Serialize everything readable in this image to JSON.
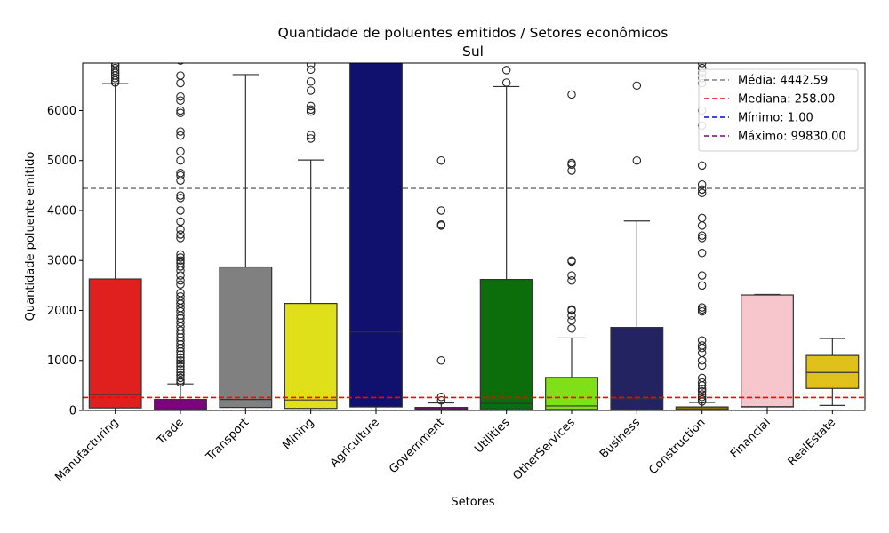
{
  "chart_data": {
    "type": "box",
    "title": "Quantidade de poluentes emitidos / Setores econômicos",
    "subtitle": "Sul",
    "xlabel": "Setores",
    "ylabel": "Quantidade poluente emitido",
    "ylim": [
      0,
      6950
    ],
    "yticks": [
      0,
      1000,
      2000,
      3000,
      4000,
      5000,
      6000
    ],
    "grid": false,
    "legend_position": "top-right",
    "categories": [
      "Manufacturing",
      "Trade",
      "Transport",
      "Mining",
      "Agriculture",
      "Government",
      "Utilities",
      "OtherServices",
      "Business",
      "Construction",
      "Financial",
      "RealEstate"
    ],
    "boxes": [
      {
        "category": "Manufacturing",
        "color": "#e01f1f",
        "whisker_low": 0,
        "q1": 50,
        "median": 320,
        "q3": 2630,
        "whisker_high": 6540,
        "outliers": [
          6560,
          6600,
          6650,
          6700,
          6750,
          6800,
          6850,
          6900,
          6950
        ]
      },
      {
        "category": "Trade",
        "color": "#800080",
        "whisker_low": 0,
        "q1": 10,
        "median": 60,
        "q3": 220,
        "whisker_high": 530,
        "outliers": [
          560,
          600,
          650,
          700,
          760,
          820,
          880,
          940,
          1000,
          1060,
          1120,
          1180,
          1250,
          1320,
          1390,
          1460,
          1530,
          1600,
          1680,
          1760,
          1840,
          1900,
          1980,
          2050,
          2130,
          2200,
          2280,
          2350,
          2520,
          2600,
          2700,
          2800,
          2880,
          2950,
          3000,
          3060,
          3120,
          3450,
          3520,
          3620,
          3780,
          4000,
          4250,
          4300,
          4600,
          4700,
          4750,
          5000,
          5180,
          5500,
          5580,
          5950,
          6000,
          6200,
          6280,
          6550,
          6700,
          7000
        ]
      },
      {
        "category": "Transport",
        "color": "#808080",
        "whisker_low": 0,
        "q1": 60,
        "median": 220,
        "q3": 2870,
        "whisker_high": 6720,
        "outliers": []
      },
      {
        "category": "Mining",
        "color": "#e0e01a",
        "whisker_low": 0,
        "q1": 40,
        "median": 210,
        "q3": 2140,
        "whisker_high": 5010,
        "outliers": [
          5440,
          5510,
          5980,
          6020,
          6090,
          6400,
          6580,
          6820,
          6920
        ]
      },
      {
        "category": "Agriculture",
        "color": "#10106e",
        "whisker_low": 0,
        "q1": 70,
        "median": 1570,
        "q3": 6950,
        "whisker_high": 6950,
        "outliers": []
      },
      {
        "category": "Government",
        "color": "#800080",
        "whisker_low": 0,
        "q1": 5,
        "median": 30,
        "q3": 60,
        "whisker_high": 150,
        "outliers": [
          200,
          270,
          1000,
          3700,
          3720,
          4000,
          5000
        ]
      },
      {
        "category": "Utilities",
        "color": "#0b6e0b",
        "whisker_low": 0,
        "q1": 30,
        "median": 140,
        "q3": 2620,
        "whisker_high": 6480,
        "outliers": [
          6560,
          6810
        ]
      },
      {
        "category": "OtherServices",
        "color": "#7fe01a",
        "whisker_low": 0,
        "q1": 20,
        "median": 90,
        "q3": 660,
        "whisker_high": 1450,
        "outliers": [
          1640,
          1800,
          1900,
          2000,
          2020,
          2600,
          2700,
          2980,
          3000,
          4800,
          4920,
          4950,
          6320
        ]
      },
      {
        "category": "Business",
        "color": "#232361",
        "whisker_low": 0,
        "q1": 20,
        "median": 230,
        "q3": 1660,
        "whisker_high": 3790,
        "outliers": [
          5000,
          6500
        ]
      },
      {
        "category": "Construction",
        "color": "#8b6914",
        "whisker_low": 0,
        "q1": 5,
        "median": 20,
        "q3": 70,
        "whisker_high": 160,
        "outliers": [
          180,
          220,
          270,
          320,
          380,
          430,
          500,
          560,
          650,
          900,
          1000,
          1150,
          1250,
          1300,
          1400,
          1980,
          2020,
          2060,
          2500,
          2700,
          3150,
          3450,
          3500,
          3700,
          3850,
          4350,
          4420,
          4520,
          4900,
          5700,
          6000,
          6550,
          6650,
          6750,
          6850,
          6950
        ]
      },
      {
        "category": "Financial",
        "color": "#f7c5cc",
        "whisker_low": 0,
        "q1": 70,
        "median": 75,
        "q3": 2310,
        "whisker_high": 2320,
        "outliers": []
      },
      {
        "category": "RealEstate",
        "color": "#e0c01a",
        "whisker_low": 100,
        "q1": 440,
        "median": 760,
        "q3": 1100,
        "whisker_high": 1440,
        "outliers": []
      }
    ],
    "reference_lines": [
      {
        "label": "Média: 4442.59",
        "value": 4442.59,
        "color": "#808080"
      },
      {
        "label": "Mediana: 258.00",
        "value": 258.0,
        "color": "#ff0000"
      },
      {
        "label": "Mínimo: 1.00",
        "value": 1.0,
        "color": "#0000ff"
      },
      {
        "label": "Máximo: 99830.00",
        "value": 99830.0,
        "color": "#800080"
      }
    ]
  }
}
